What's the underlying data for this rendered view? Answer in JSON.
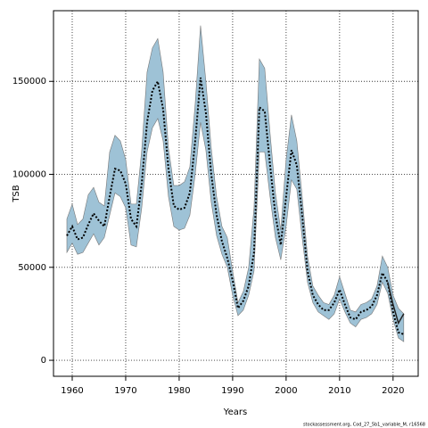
{
  "chart_data": {
    "type": "line",
    "x_label": "Years",
    "y_label": "TSB",
    "footnote": "stockassessment.org, Cod_27_5b1_variable_M, r16568",
    "x": [
      1959,
      1960,
      1961,
      1962,
      1963,
      1964,
      1965,
      1966,
      1967,
      1968,
      1969,
      1970,
      1971,
      1972,
      1973,
      1974,
      1975,
      1976,
      1977,
      1978,
      1979,
      1980,
      1981,
      1982,
      1983,
      1984,
      1985,
      1986,
      1987,
      1988,
      1989,
      1990,
      1991,
      1992,
      1993,
      1994,
      1995,
      1996,
      1997,
      1998,
      1999,
      2000,
      2001,
      2002,
      2003,
      2004,
      2005,
      2006,
      2007,
      2008,
      2009,
      2010,
      2011,
      2012,
      2013,
      2014,
      2015,
      2016,
      2017,
      2018,
      2019,
      2020,
      2021,
      2022
    ],
    "band": {
      "color": "#9ec2d6",
      "lower": [
        58000,
        63000,
        57000,
        58000,
        63000,
        68000,
        62000,
        66000,
        78000,
        90000,
        88000,
        82000,
        62000,
        61000,
        82000,
        112000,
        125000,
        130000,
        118000,
        88000,
        72000,
        70000,
        71000,
        78000,
        100000,
        128000,
        113000,
        85000,
        67000,
        57000,
        50000,
        35000,
        24000,
        27000,
        35000,
        48000,
        112000,
        112000,
        88000,
        66000,
        54000,
        72000,
        97000,
        92000,
        66000,
        42000,
        31000,
        26000,
        24000,
        22000,
        25000,
        33000,
        26000,
        20000,
        18000,
        22000,
        23000,
        25000,
        30000,
        42000,
        36000,
        22000,
        12000,
        10000
      ],
      "upper": [
        76000,
        84000,
        73000,
        76000,
        89000,
        93000,
        85000,
        83000,
        112000,
        121000,
        118000,
        108000,
        84000,
        84000,
        113000,
        155000,
        168000,
        173000,
        155000,
        114000,
        94000,
        94000,
        96000,
        104000,
        138000,
        180000,
        150000,
        114000,
        88000,
        72000,
        66000,
        48000,
        31000,
        37000,
        50000,
        82000,
        162000,
        157000,
        122000,
        90000,
        70000,
        108000,
        132000,
        118000,
        88000,
        56000,
        40000,
        35000,
        31000,
        30000,
        35000,
        45000,
        36000,
        27000,
        26000,
        30000,
        31000,
        33000,
        40000,
        56000,
        50000,
        35000,
        28000,
        25000
      ]
    },
    "series": [
      {
        "color": "#000000",
        "dash": true,
        "values": [
          67000,
          72000,
          65000,
          66000,
          73000,
          79000,
          75000,
          72000,
          88000,
          103000,
          102000,
          95000,
          76000,
          72000,
          95000,
          128000,
          145000,
          150000,
          135000,
          103000,
          83000,
          81000,
          82000,
          90000,
          118000,
          152000,
          133000,
          100000,
          78000,
          64000,
          55000,
          43000,
          28000,
          32000,
          40000,
          58000,
          136000,
          134000,
          105000,
          78000,
          62000,
          88000,
          113000,
          105000,
          78000,
          48000,
          35000,
          30000,
          27000,
          27000,
          31000,
          38000,
          30000,
          23000,
          22000,
          26000,
          27000,
          29000,
          35000,
          47000,
          42000,
          26000,
          15000,
          14000
        ]
      },
      {
        "color": "#222222",
        "dash": false,
        "values": [
          null,
          null,
          null,
          null,
          null,
          null,
          null,
          null,
          null,
          null,
          null,
          null,
          null,
          null,
          null,
          null,
          null,
          null,
          null,
          null,
          null,
          null,
          null,
          null,
          null,
          null,
          null,
          null,
          null,
          null,
          null,
          null,
          null,
          null,
          null,
          null,
          null,
          null,
          null,
          null,
          null,
          null,
          null,
          null,
          null,
          null,
          null,
          null,
          null,
          null,
          null,
          null,
          null,
          null,
          null,
          null,
          null,
          null,
          null,
          null,
          42000,
          30000,
          20000,
          25000
        ]
      }
    ],
    "xlim": [
      1956.5,
      2024.7
    ],
    "ylim": [
      -8600,
      188000
    ],
    "xticks": [
      1960,
      1970,
      1980,
      1990,
      2000,
      2010,
      2020
    ],
    "yticks": [
      0,
      50000,
      100000,
      150000
    ],
    "grid": true
  }
}
